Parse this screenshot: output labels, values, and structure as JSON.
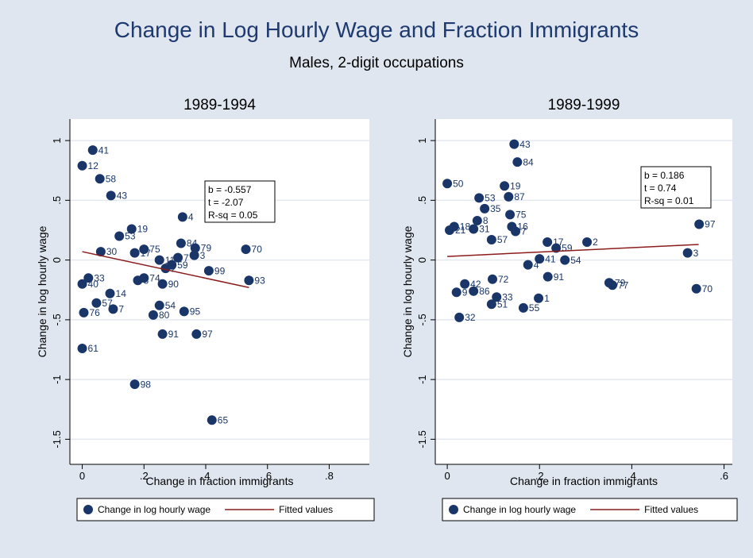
{
  "title": "Change in Log Hourly Wage and Fraction Immigrants",
  "subtitle": "Males, 2-digit occupations",
  "chart_data": [
    {
      "type": "scatter",
      "title": "1989-1994",
      "xlabel": "Change in fraction immigrants",
      "ylabel": "Change in log hourly wage",
      "xlim": [
        -0.04,
        0.93
      ],
      "ylim": [
        -1.71,
        1.18
      ],
      "xticks": [
        0,
        {
          "value": 0.2,
          "label": ".2"
        },
        {
          "value": 0.4,
          "label": ".4"
        },
        {
          "value": 0.6,
          "label": ".6"
        },
        {
          "value": 0.8,
          "label": ".8"
        }
      ],
      "yticks": [
        1,
        {
          "value": 0.5,
          "label": ".5"
        },
        0,
        {
          "value": -0.5,
          "label": "-.5"
        },
        -1,
        {
          "value": -1.5,
          "label": "-1.5"
        }
      ],
      "grid": true,
      "legend": "bottom",
      "annotation": [
        "b = -0.557",
        "t = -2.07",
        "R-sq = 0.05"
      ],
      "series": [
        {
          "name": "Change in log hourly wage",
          "color": "#1a3668",
          "type": "scatter",
          "x": [
            0.034,
            0,
            0.057,
            0.093,
            0.325,
            0.16,
            0.12,
            0.32,
            0.366,
            0.53,
            0.2,
            0.363,
            0.31,
            0.29,
            0.41,
            0.54,
            0.26,
            0.33,
            0.25,
            0.23,
            0.26,
            0.37,
            0.17,
            0.42,
            0,
            0.005,
            0.046,
            0.1,
            0.09,
            0,
            0.02,
            0.17,
            0.25,
            0.2,
            0.18,
            0.27,
            0.06
          ],
          "values": [
            0.92,
            0.79,
            0.68,
            0.54,
            0.36,
            0.26,
            0.2,
            0.14,
            0.1,
            0.09,
            0.09,
            0.04,
            0.02,
            -0.04,
            -0.09,
            -0.17,
            -0.2,
            -0.43,
            -0.38,
            -0.46,
            -0.62,
            -0.62,
            -1.04,
            -1.34,
            -0.74,
            -0.44,
            -0.36,
            -0.41,
            -0.28,
            -0.2,
            -0.15,
            0.06,
            0,
            -0.15,
            -0.17,
            -0.07,
            0.07
          ],
          "point_labels": [
            "41",
            "12",
            "58",
            "43",
            "4",
            "19",
            "53",
            "84",
            "79",
            "70",
            "75",
            "3",
            "7",
            "59",
            "99",
            "93",
            "90",
            "95",
            "54",
            "80",
            "91",
            "97",
            "98",
            "65",
            "61",
            "76",
            "57",
            "7",
            "14",
            "40",
            "33",
            "17",
            "11",
            "74",
            "8",
            "2",
            "30"
          ]
        },
        {
          "name": "Fitted values",
          "color": "#8b1c1c",
          "type": "line",
          "x": [
            0,
            0.54
          ],
          "values": [
            0.07,
            -0.23
          ]
        }
      ]
    },
    {
      "type": "scatter",
      "title": "1989-1999",
      "xlabel": "Change in fraction immigrants",
      "ylabel": "Change in log hourly wage",
      "xlim": [
        -0.026,
        0.618
      ],
      "ylim": [
        -1.71,
        1.18
      ],
      "xticks": [
        0,
        {
          "value": 0.2,
          "label": ".2"
        },
        {
          "value": 0.4,
          "label": ".4"
        },
        {
          "value": 0.6,
          "label": ".6"
        }
      ],
      "yticks": [
        1,
        {
          "value": 0.5,
          "label": ".5"
        },
        0,
        {
          "value": -0.5,
          "label": "-.5"
        },
        -1,
        {
          "value": -1.5,
          "label": "-1.5"
        }
      ],
      "grid": true,
      "legend": "bottom",
      "annotation": [
        "b = 0.186",
        "t = 0.74",
        "R-sq = 0.01"
      ],
      "series": [
        {
          "name": "Change in log hourly wage",
          "color": "#1a3668",
          "type": "scatter",
          "x": [
            0.145,
            0.152,
            0,
            0.124,
            0.069,
            0.133,
            0.081,
            0.14,
            0.148,
            0.136,
            0.303,
            0.546,
            0.521,
            0.54,
            0.351,
            0.358,
            0.255,
            0.2,
            0.175,
            0.218,
            0.236,
            0.217,
            0.198,
            0.165,
            0.096,
            0.026,
            0.005,
            0.015,
            0.057,
            0.065,
            0.038,
            0.02,
            0.057,
            0.098,
            0.107,
            0.096
          ],
          "values": [
            0.97,
            0.82,
            0.64,
            0.62,
            0.52,
            0.53,
            0.43,
            0.28,
            0.24,
            0.38,
            0.15,
            0.3,
            0.06,
            -0.24,
            -0.19,
            -0.21,
            0,
            0.01,
            -0.04,
            -0.14,
            0.1,
            0.15,
            -0.32,
            -0.4,
            -0.37,
            -0.48,
            0.25,
            0.28,
            0.26,
            0.33,
            -0.2,
            -0.27,
            -0.26,
            -0.16,
            -0.31,
            0.17
          ],
          "point_labels": [
            "43",
            "84",
            "50",
            "19",
            "53",
            "87",
            "35",
            "16",
            "7",
            "75",
            "2",
            "97",
            "3",
            "70",
            "79",
            "77",
            "54",
            "41",
            "4",
            "91",
            "59",
            "17",
            "1",
            "55",
            "51",
            "32",
            "21",
            "18",
            "31",
            "8",
            "42",
            "9",
            "86",
            "72",
            "33",
            "57"
          ]
        },
        {
          "name": "Fitted values",
          "color": "#8b1c1c",
          "type": "line",
          "x": [
            0,
            0.545
          ],
          "values": [
            0.03,
            0.13
          ]
        }
      ]
    }
  ]
}
